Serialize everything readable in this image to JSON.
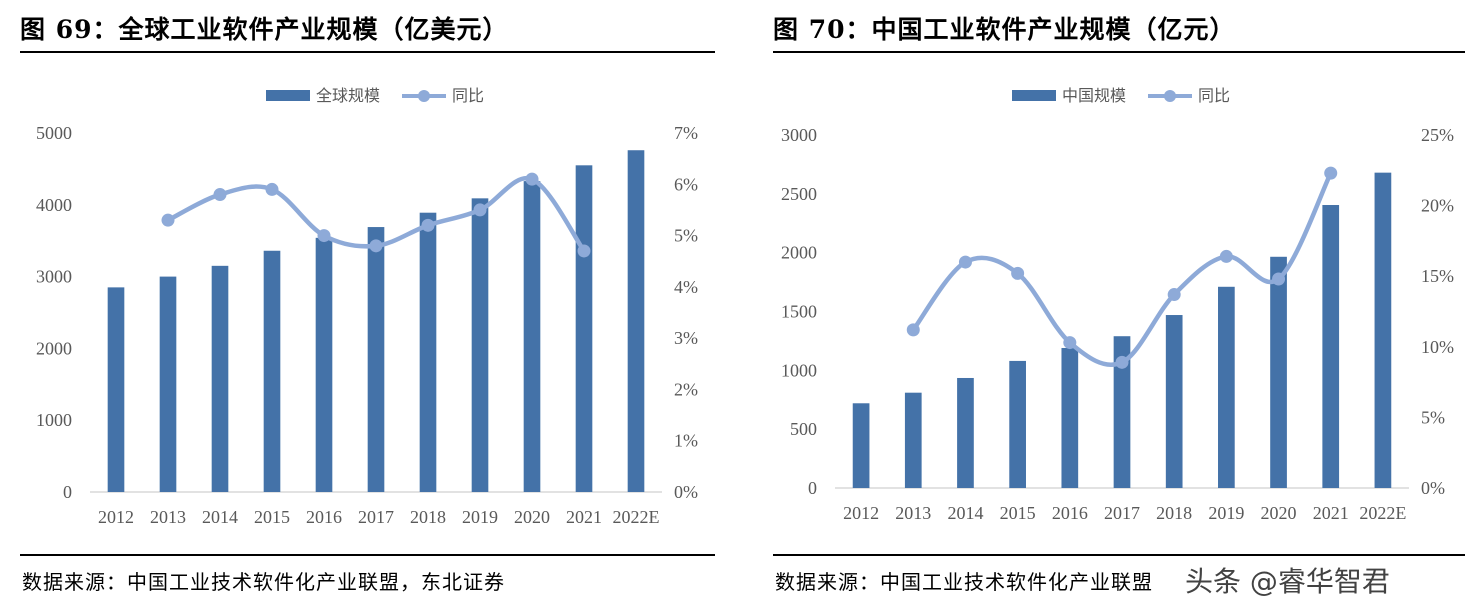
{
  "watermark": "头条 @睿华智君",
  "panels": [
    {
      "title": "图 69：全球工业软件产业规模（亿美元）",
      "source": "数据来源：中国工业技术软件化产业联盟，东北证券"
    },
    {
      "title": "图 70：中国工业软件产业规模（亿元）",
      "source": "数据来源：中国工业技术软件化产业联盟"
    }
  ],
  "chart_data": [
    {
      "type": "bar+line",
      "categories": [
        "2012",
        "2013",
        "2014",
        "2015",
        "2016",
        "2017",
        "2018",
        "2019",
        "2020",
        "2021",
        "2022E"
      ],
      "series": [
        {
          "name": "全球规模",
          "type": "bar",
          "axis": "left",
          "values": [
            2850,
            3000,
            3150,
            3360,
            3540,
            3690,
            3890,
            4090,
            4330,
            4550,
            4760
          ]
        },
        {
          "name": "同比",
          "type": "line",
          "axis": "right",
          "values": [
            null,
            5.3,
            5.8,
            5.9,
            5.0,
            4.8,
            5.2,
            5.5,
            6.1,
            4.7,
            null
          ]
        }
      ],
      "ylim_left": [
        0,
        5000
      ],
      "yticks_left": [
        "0",
        "1000",
        "2000",
        "3000",
        "4000",
        "5000"
      ],
      "ylim_right": [
        0,
        7
      ],
      "yticks_right": [
        "0%",
        "1%",
        "2%",
        "3%",
        "4%",
        "5%",
        "6%",
        "7%"
      ],
      "legend": "top",
      "grid": false,
      "colors": {
        "bar": "#4472a8",
        "line": "#8eaad8"
      }
    },
    {
      "type": "bar+line",
      "categories": [
        "2012",
        "2013",
        "2014",
        "2015",
        "2016",
        "2017",
        "2018",
        "2019",
        "2020",
        "2021",
        "2022E"
      ],
      "series": [
        {
          "name": "中国规模",
          "type": "bar",
          "axis": "left",
          "values": [
            720,
            810,
            935,
            1080,
            1190,
            1290,
            1470,
            1710,
            1965,
            2405,
            2680
          ]
        },
        {
          "name": "同比",
          "type": "line",
          "axis": "right",
          "values": [
            null,
            11.2,
            16.0,
            15.2,
            10.3,
            8.9,
            13.7,
            16.4,
            14.8,
            22.3,
            null
          ]
        }
      ],
      "ylim_left": [
        0,
        3000
      ],
      "yticks_left": [
        "0",
        "500",
        "1000",
        "1500",
        "2000",
        "2500",
        "3000"
      ],
      "ylim_right": [
        0,
        25
      ],
      "yticks_right": [
        "0%",
        "5%",
        "10%",
        "15%",
        "20%",
        "25%"
      ],
      "legend": "top",
      "grid": false,
      "colors": {
        "bar": "#4472a8",
        "line": "#8eaad8"
      }
    }
  ]
}
